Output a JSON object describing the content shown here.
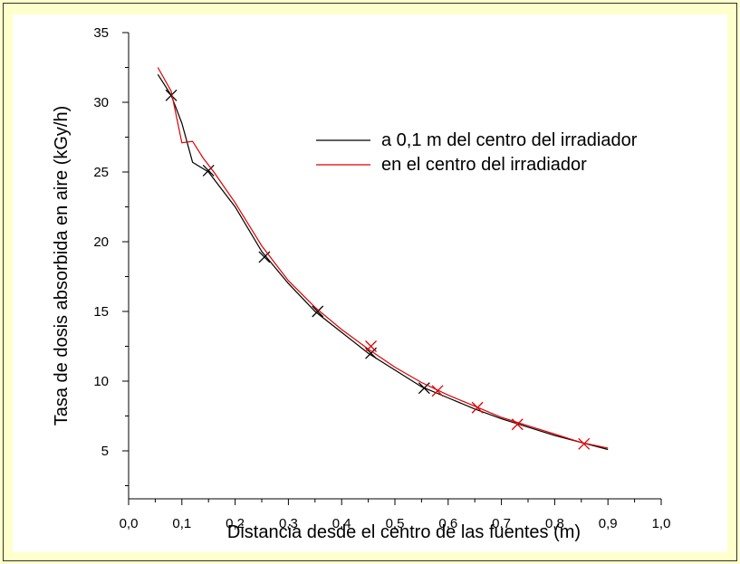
{
  "colors": {
    "background": "#ffffcc",
    "panel": "#ffffff",
    "series_black": "#000000",
    "series_red": "#dd0000"
  },
  "chart_data": {
    "type": "line",
    "xlabel": "Distancia desde el centro de las fuentes (m)",
    "ylabel": "Tasa de dosis absorbida en aire (kGy/h)",
    "xlim": [
      0.0,
      1.0
    ],
    "ylim": [
      2.0,
      35.0
    ],
    "xticks": [
      "0,0",
      "0,1",
      "0,2",
      "0,3",
      "0,4",
      "0,5",
      "0,6",
      "0,7",
      "0,8",
      "0,9",
      "1,0"
    ],
    "xtick_values": [
      0.0,
      0.1,
      0.2,
      0.3,
      0.4,
      0.5,
      0.6,
      0.7,
      0.8,
      0.9,
      1.0
    ],
    "yticks": [
      "5",
      "10",
      "15",
      "20",
      "25",
      "30",
      "35"
    ],
    "ytick_values": [
      5,
      10,
      15,
      20,
      25,
      30,
      35
    ],
    "legend_position": "top-right",
    "series": [
      {
        "name": "a 0,1 m del centro del irradiador",
        "color": "#000000",
        "line_x": [
          0.055,
          0.08,
          0.1,
          0.12,
          0.15,
          0.2,
          0.25,
          0.3,
          0.35,
          0.4,
          0.45,
          0.5,
          0.55,
          0.6,
          0.65,
          0.7,
          0.75,
          0.8,
          0.85,
          0.9
        ],
        "line_y": [
          32.0,
          30.5,
          28.5,
          25.7,
          25.0,
          22.5,
          19.3,
          17.0,
          15.0,
          13.5,
          12.0,
          10.8,
          9.6,
          8.8,
          8.0,
          7.3,
          6.7,
          6.1,
          5.6,
          5.1
        ],
        "markers_x": [
          0.08,
          0.15,
          0.255,
          0.355,
          0.455,
          0.555
        ],
        "markers_y": [
          30.5,
          25.1,
          18.9,
          15.0,
          12.0,
          9.5
        ]
      },
      {
        "name": "en el centro del irradiador",
        "color": "#dd0000",
        "line_x": [
          0.055,
          0.08,
          0.1,
          0.12,
          0.14,
          0.16,
          0.2,
          0.25,
          0.3,
          0.35,
          0.4,
          0.45,
          0.5,
          0.55,
          0.6,
          0.65,
          0.7,
          0.75,
          0.8,
          0.85,
          0.9
        ],
        "line_y": [
          32.5,
          30.8,
          27.1,
          27.2,
          26.0,
          25.0,
          22.8,
          19.7,
          17.2,
          15.3,
          13.7,
          12.3,
          11.0,
          9.9,
          9.0,
          8.2,
          7.4,
          6.8,
          6.2,
          5.6,
          5.2
        ],
        "markers_x": [
          0.455,
          0.58,
          0.655,
          0.73,
          0.855
        ],
        "markers_y": [
          12.5,
          9.3,
          8.1,
          6.9,
          5.5
        ]
      }
    ]
  }
}
